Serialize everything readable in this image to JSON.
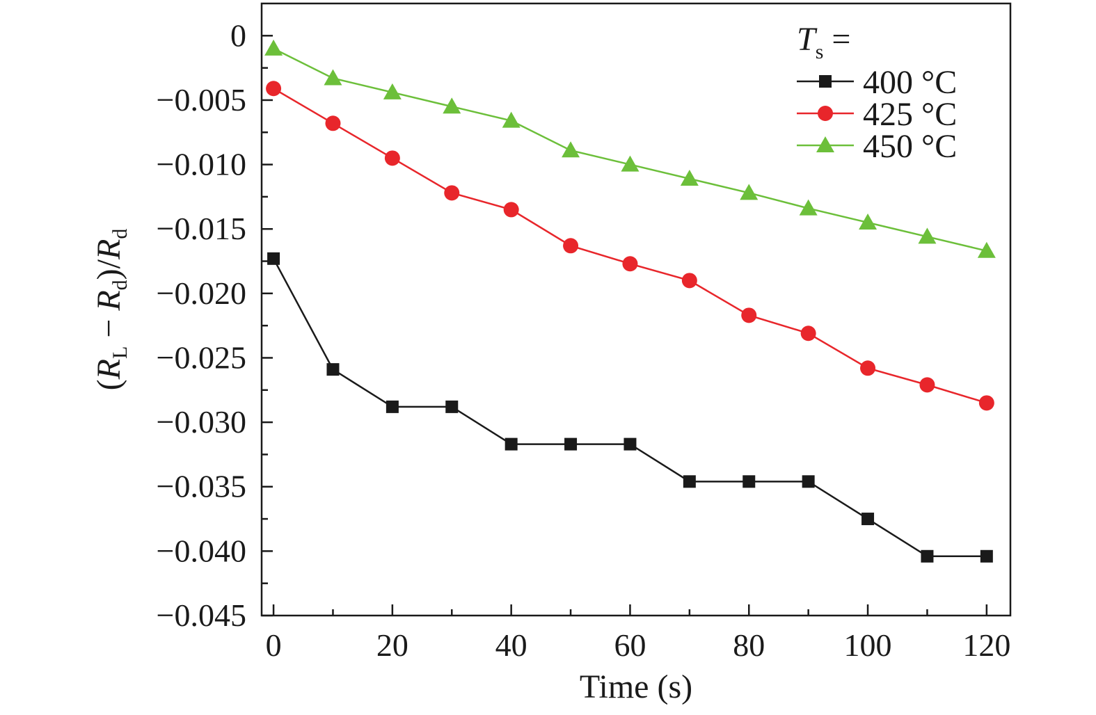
{
  "chart_data": {
    "type": "line",
    "xlabel": "Time (s)",
    "ylabel": {
      "parts": [
        {
          "t": "(",
          "style": "normal"
        },
        {
          "t": "R",
          "style": "italic"
        },
        {
          "t": "L",
          "style": "sub"
        },
        {
          "t": " − ",
          "style": "normal"
        },
        {
          "t": "R",
          "style": "italic"
        },
        {
          "t": "d",
          "style": "sub"
        },
        {
          "t": ")/",
          "style": "normal"
        },
        {
          "t": "R",
          "style": "italic"
        },
        {
          "t": "d",
          "style": "sub"
        }
      ]
    },
    "xlim": [
      -2,
      124
    ],
    "ylim": [
      -0.045,
      0.0025
    ],
    "x_ticks": [
      0,
      20,
      40,
      60,
      80,
      100,
      120
    ],
    "x_tick_labels": [
      "0",
      "20",
      "40",
      "60",
      "80",
      "100",
      "120"
    ],
    "x_minor_ticks": [
      10,
      30,
      50,
      70,
      90,
      110
    ],
    "y_ticks": [
      0,
      -0.005,
      -0.01,
      -0.015,
      -0.02,
      -0.025,
      -0.03,
      -0.035,
      -0.04,
      -0.045
    ],
    "y_tick_labels": [
      "0",
      "−0.005",
      "−0.010",
      "−0.015",
      "−0.020",
      "−0.025",
      "−0.030",
      "−0.035",
      "−0.040",
      "−0.045"
    ],
    "legend": {
      "title_symbol": "T",
      "title_sub": "s",
      "title_suffix": " =",
      "placement": "top-right"
    },
    "x": [
      0,
      10,
      20,
      30,
      40,
      50,
      60,
      70,
      80,
      90,
      100,
      110,
      120
    ],
    "series": [
      {
        "name": "400 °C",
        "color": "#1a1a1a",
        "marker": "square",
        "values": [
          -0.0173,
          -0.0259,
          -0.0288,
          -0.0288,
          -0.0317,
          -0.0317,
          -0.0317,
          -0.0346,
          -0.0346,
          -0.0346,
          -0.0375,
          -0.0404,
          -0.0404
        ]
      },
      {
        "name": "425 °C",
        "color": "#e8262b",
        "marker": "circle",
        "values": [
          -0.0041,
          -0.0068,
          -0.0095,
          -0.0122,
          -0.0135,
          -0.0163,
          -0.0177,
          -0.019,
          -0.0217,
          -0.0231,
          -0.0258,
          -0.0271,
          -0.0285
        ]
      },
      {
        "name": "450 °C",
        "color": "#6cbf3a",
        "marker": "triangle",
        "values": [
          -0.001,
          -0.0033,
          -0.0044,
          -0.0055,
          -0.0066,
          -0.0089,
          -0.01,
          -0.0111,
          -0.0122,
          -0.0134,
          -0.0145,
          -0.0156,
          -0.0167
        ]
      }
    ]
  }
}
